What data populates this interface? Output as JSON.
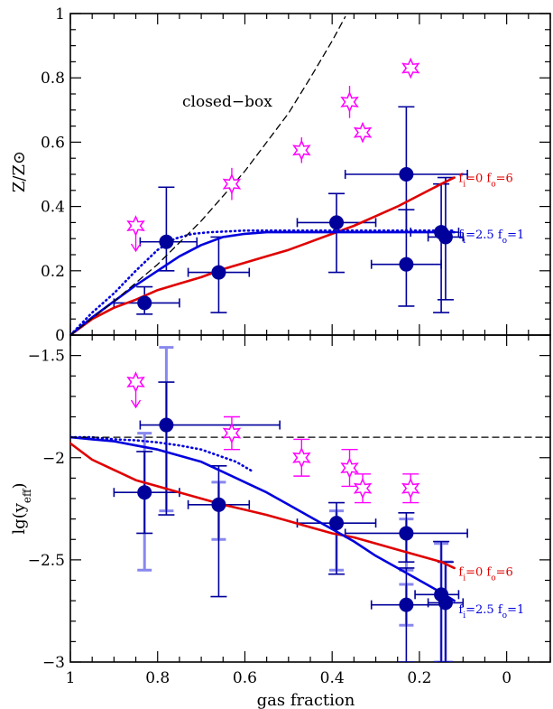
{
  "chart_data": [
    {
      "type": "scatter",
      "panel": "top",
      "xlabel": "",
      "ylabel": "Z/Z⊙",
      "xlim": [
        1,
        -0.1
      ],
      "ylim": [
        0,
        1
      ],
      "x_ticks": [
        1,
        0.8,
        0.6,
        0.4,
        0.2,
        0
      ],
      "y_ticks": [
        0,
        0.2,
        0.4,
        0.6,
        0.8,
        1
      ],
      "y_tick_labels": [
        "0",
        "0.2",
        "0.4",
        "0.6",
        "0.8",
        "1"
      ],
      "annotation": "closed−box",
      "colors": {
        "data": "#00009b",
        "stars": "#ff00ff",
        "red": "#e00000",
        "blue": "#0000dd",
        "dashed": "#000000"
      },
      "points": [
        {
          "x": 0.83,
          "y": 0.1,
          "xerr": [
            0.07,
            0.08
          ],
          "yerr": [
            0.035,
            0.05
          ]
        },
        {
          "x": 0.78,
          "y": 0.29,
          "xerr": [
            0.06,
            0.07
          ],
          "yerr": [
            0.09,
            0.17
          ]
        },
        {
          "x": 0.66,
          "y": 0.195,
          "xerr": [
            0.07,
            0.07
          ],
          "yerr": [
            0.125,
            0.11
          ]
        },
        {
          "x": 0.39,
          "y": 0.35,
          "xerr": [
            0.09,
            0.09
          ],
          "yerr": [
            0.155,
            0.09
          ]
        },
        {
          "x": 0.23,
          "y": 0.22,
          "xerr": [
            0.08,
            0.08
          ],
          "yerr": [
            0.13,
            0.17
          ]
        },
        {
          "x": 0.23,
          "y": 0.5,
          "xerr": [
            0.14,
            0.14
          ],
          "yerr": [
            0.18,
            0.21
          ]
        },
        {
          "x": 0.15,
          "y": 0.32,
          "xerr": [
            0.07,
            0.04
          ],
          "yerr": [
            0.25,
            0.15
          ]
        },
        {
          "x": 0.14,
          "y": 0.305,
          "xerr": [
            0.04,
            0.04
          ],
          "yerr": [
            0.195,
            0.185
          ]
        }
      ],
      "stars": [
        {
          "x": 0.85,
          "y": 0.34,
          "upper_limit": true
        },
        {
          "x": 0.63,
          "y": 0.47,
          "yerr": [
            0.05,
            0.05
          ]
        },
        {
          "x": 0.47,
          "y": 0.575,
          "yerr": [
            0.04,
            0.04
          ]
        },
        {
          "x": 0.36,
          "y": 0.725,
          "yerr": [
            0.05,
            0.05
          ]
        },
        {
          "x": 0.33,
          "y": 0.63,
          "yerr": [
            0.03,
            0.03
          ]
        },
        {
          "x": 0.22,
          "y": 0.83,
          "yerr": [
            0.02,
            0.02
          ]
        }
      ],
      "series": [
        {
          "name": "f_i=0 f_o=6",
          "color": "#e00000",
          "style": "solid",
          "x": [
            1,
            0.95,
            0.9,
            0.85,
            0.8,
            0.75,
            0.7,
            0.65,
            0.6,
            0.55,
            0.5,
            0.45,
            0.4,
            0.35,
            0.3,
            0.25,
            0.2,
            0.15,
            0.12
          ],
          "y": [
            0,
            0.05,
            0.085,
            0.11,
            0.14,
            0.16,
            0.18,
            0.205,
            0.225,
            0.245,
            0.265,
            0.29,
            0.315,
            0.34,
            0.37,
            0.4,
            0.435,
            0.47,
            0.49
          ]
        },
        {
          "name": "f_i=2.5 f_o=1",
          "color": "#0000dd",
          "style": "solid",
          "x": [
            1,
            0.95,
            0.9,
            0.85,
            0.8,
            0.75,
            0.7,
            0.65,
            0.6,
            0.55,
            0.5,
            0.45,
            0.4,
            0.3,
            0.2,
            0.15,
            0.12
          ],
          "y": [
            0,
            0.055,
            0.105,
            0.155,
            0.2,
            0.245,
            0.28,
            0.305,
            0.315,
            0.32,
            0.32,
            0.32,
            0.32,
            0.32,
            0.32,
            0.32,
            0.32
          ]
        },
        {
          "name": "",
          "color": "#0000dd",
          "style": "dotted",
          "x": [
            1,
            0.95,
            0.9,
            0.85,
            0.8,
            0.76,
            0.72,
            0.68,
            0.6,
            0.5,
            0.4,
            0.2,
            0.12
          ],
          "y": [
            0,
            0.07,
            0.13,
            0.2,
            0.265,
            0.3,
            0.315,
            0.32,
            0.325,
            0.325,
            0.325,
            0.325,
            0.325
          ]
        },
        {
          "name": "closed−box",
          "color": "#000000",
          "style": "dashed",
          "x": [
            1,
            0.9,
            0.8,
            0.7,
            0.6,
            0.5,
            0.45,
            0.4,
            0.37
          ],
          "y": [
            0,
            0.105,
            0.22,
            0.355,
            0.51,
            0.69,
            0.8,
            0.915,
            0.99
          ]
        }
      ],
      "curve_labels": [
        {
          "text": "f",
          "sub": "i",
          "rest1": "=0  f",
          "sub2": "o",
          "rest2": "=6",
          "color": "#e00000",
          "x": 0.11,
          "y": 0.49
        },
        {
          "text": "f",
          "sub": "i",
          "rest1": "=2.5  f",
          "sub2": "o",
          "rest2": "=1",
          "color": "#0000dd",
          "x": 0.11,
          "y": 0.315
        }
      ]
    },
    {
      "type": "scatter",
      "panel": "bottom",
      "xlabel": "gas fraction",
      "ylabel": "lg(y_eff)",
      "xlim": [
        1,
        -0.1
      ],
      "ylim": [
        -3,
        -1.4
      ],
      "x_ticks": [
        1,
        0.8,
        0.6,
        0.4,
        0.2,
        0
      ],
      "x_tick_labels": [
        "1",
        "0.8",
        "0.6",
        "0.4",
        "0.2",
        "0"
      ],
      "y_ticks": [
        -3,
        -2.5,
        -2,
        -1.5
      ],
      "y_tick_labels": [
        "−3",
        "−2.5",
        "−2",
        "−1.5"
      ],
      "colors": {
        "data": "#00009b",
        "light_err": "#8888ee",
        "stars": "#ff00ff"
      },
      "points": [
        {
          "x": 0.83,
          "y": -2.17,
          "xerr": [
            0.07,
            0.08
          ],
          "yerr": [
            0.2,
            0.2
          ],
          "yerr_light": [
            0.38,
            0.29
          ]
        },
        {
          "x": 0.78,
          "y": -1.84,
          "xerr": [
            0.06,
            0.26
          ],
          "yerr": [
            0.44,
            0.21
          ],
          "yerr_light": [
            0.42,
            0.38
          ]
        },
        {
          "x": 0.66,
          "y": -2.23,
          "xerr": [
            0.07,
            0.07
          ],
          "yerr": [
            0.45,
            0.19
          ],
          "yerr_light": [
            0.17,
            0.11
          ]
        },
        {
          "x": 0.39,
          "y": -2.32,
          "xerr": [
            0.09,
            0.09
          ],
          "yerr": [
            0.25,
            0.1
          ],
          "yerr_light": [
            0.23,
            0.06
          ]
        },
        {
          "x": 0.23,
          "y": -2.37,
          "xerr": [
            0.14,
            0.14
          ],
          "yerr": [
            0.14,
            0.1
          ],
          "yerr_light": [
            0.18,
            0.07
          ]
        },
        {
          "x": 0.23,
          "y": -2.72,
          "xerr": [
            0.08,
            0.08
          ],
          "yerr": [
            0.28,
            0.18
          ],
          "yerr_light": [
            0.1,
            0.1
          ]
        },
        {
          "x": 0.15,
          "y": -2.67,
          "xerr": [
            0.06,
            0.04
          ],
          "yerr": [
            0.33,
            0.26
          ],
          "yerr_light": [
            0.33,
            0.25
          ]
        },
        {
          "x": 0.14,
          "y": -2.71,
          "xerr": [
            0.04,
            0.04
          ],
          "yerr": [
            0.29,
            0.2
          ],
          "yerr_light": [
            0.29,
            0.2
          ]
        }
      ],
      "stars": [
        {
          "x": 0.85,
          "y": -1.63,
          "upper_limit": true
        },
        {
          "x": 0.63,
          "y": -1.88,
          "yerr": [
            0.08,
            0.08
          ]
        },
        {
          "x": 0.47,
          "y": -2.0,
          "yerr": [
            0.09,
            0.09
          ]
        },
        {
          "x": 0.36,
          "y": -2.05,
          "yerr": [
            0.09,
            0.09
          ]
        },
        {
          "x": 0.33,
          "y": -2.15,
          "yerr": [
            0.07,
            0.07
          ]
        },
        {
          "x": 0.22,
          "y": -2.15,
          "yerr": [
            0.07,
            0.07
          ]
        }
      ],
      "series": [
        {
          "name": "f_i=0 f_o=6",
          "color": "#e00000",
          "style": "solid",
          "x": [
            1,
            0.95,
            0.9,
            0.85,
            0.8,
            0.75,
            0.7,
            0.65,
            0.6,
            0.55,
            0.5,
            0.45,
            0.4,
            0.35,
            0.3,
            0.25,
            0.2,
            0.15,
            0.12
          ],
          "y": [
            -1.93,
            -2.01,
            -2.06,
            -2.11,
            -2.14,
            -2.17,
            -2.2,
            -2.23,
            -2.255,
            -2.28,
            -2.31,
            -2.34,
            -2.37,
            -2.39,
            -2.42,
            -2.45,
            -2.48,
            -2.51,
            -2.54
          ]
        },
        {
          "name": "f_i=2.5 f_o=1",
          "color": "#0000dd",
          "style": "solid",
          "x": [
            1,
            0.95,
            0.9,
            0.85,
            0.8,
            0.75,
            0.7,
            0.65,
            0.6,
            0.55,
            0.5,
            0.45,
            0.4,
            0.35,
            0.3,
            0.25,
            0.2,
            0.15,
            0.12
          ],
          "y": [
            -1.9,
            -1.91,
            -1.92,
            -1.94,
            -1.96,
            -1.99,
            -2.02,
            -2.07,
            -2.12,
            -2.17,
            -2.23,
            -2.29,
            -2.35,
            -2.41,
            -2.48,
            -2.54,
            -2.6,
            -2.66,
            -2.7
          ]
        },
        {
          "name": "",
          "color": "#0000dd",
          "style": "dotted",
          "x": [
            1,
            0.95,
            0.9,
            0.85,
            0.8,
            0.75,
            0.7,
            0.66,
            0.62,
            0.58
          ],
          "y": [
            -1.9,
            -1.9,
            -1.91,
            -1.915,
            -1.925,
            -1.94,
            -1.96,
            -1.99,
            -2.02,
            -2.07
          ]
        },
        {
          "name": "",
          "color": "#000000",
          "style": "dashed",
          "x": [
            1,
            -0.1
          ],
          "y": [
            -1.9,
            -1.9
          ]
        }
      ],
      "curve_labels": [
        {
          "text": "f",
          "sub": "i",
          "rest1": "=0  f",
          "sub2": "o",
          "rest2": "=6",
          "color": "#e00000",
          "x": 0.11,
          "y": -2.555
        },
        {
          "text": "f",
          "sub": "i",
          "rest1": "=2.5  f",
          "sub2": "o",
          "rest2": "=1",
          "color": "#0000dd",
          "x": 0.11,
          "y": -2.74
        }
      ]
    }
  ]
}
